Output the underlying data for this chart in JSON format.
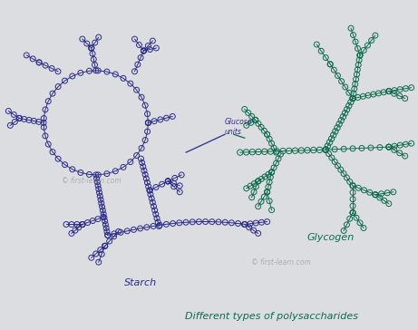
{
  "bg_color": "#dcdde0",
  "starch_color": "#2b2b8a",
  "glycogen_color": "#0d6b4a",
  "title": "Different types of polysaccharides",
  "label_starch": "Starch",
  "label_glycogen": "Glycogen",
  "label_glucose": "Glucose\nunits",
  "watermark1": "© first-learn.com",
  "watermark2": "© first-learn.com"
}
